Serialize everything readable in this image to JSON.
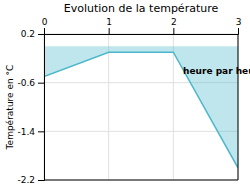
{
  "chart_data": {
    "type": "area",
    "title": "Evolution de la température",
    "ylabel": "Température en °C",
    "x": [
      0,
      1,
      2,
      3
    ],
    "values": [
      -0.5,
      -0.1,
      -0.1,
      -2.0
    ],
    "color": "#4ab8cc",
    "xlim": [
      0,
      3
    ],
    "ylim": [
      -2.2,
      0.2
    ],
    "xticks": [
      0,
      1,
      2,
      3
    ],
    "yticks": [
      -2.2,
      -1.4,
      -0.6,
      0.2
    ],
    "grid": true,
    "annotations": [
      {
        "text": "heure par heure",
        "x": 2.15,
        "y": -0.42
      }
    ]
  }
}
